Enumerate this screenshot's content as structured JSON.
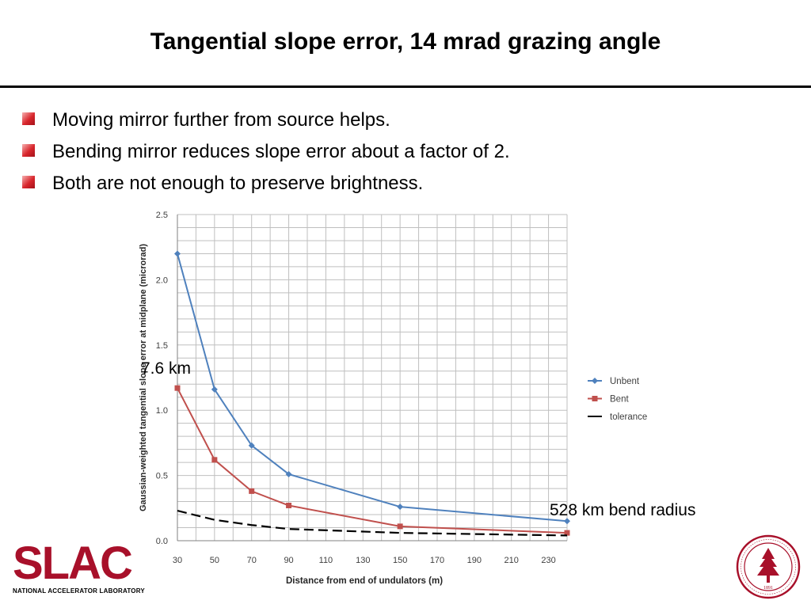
{
  "slide": {
    "title": "Tangential slope error, 14 mrad grazing angle",
    "bullets": [
      "Moving mirror further from source helps.",
      "Bending mirror reduces slope error about a factor of 2.",
      "Both are not enough to preserve brightness."
    ],
    "annotations": {
      "left": "7.6 km",
      "right": "528 km bend radius"
    },
    "footer": {
      "logo_text": "SLAC",
      "logo_subtitle": "NATIONAL ACCELERATOR LABORATORY",
      "seal_year": "1891"
    },
    "colors": {
      "accent": "#a8102a",
      "bullet": "#d8262c"
    }
  },
  "chart_data": {
    "type": "line",
    "title": "",
    "xlabel": "Distance from end of undulators (m)",
    "ylabel": "Gaussian-weighted tangential slope error at midplane (microrad)",
    "xlim": [
      30,
      240
    ],
    "ylim": [
      0,
      2.5
    ],
    "x_ticks": [
      30,
      50,
      70,
      90,
      110,
      130,
      150,
      170,
      190,
      210,
      230
    ],
    "y_ticks": [
      0.0,
      0.5,
      1.0,
      1.5,
      2.0,
      2.5
    ],
    "y_tick_labels": [
      "0.0",
      "0.5",
      "1.0",
      "1.5",
      "2.0",
      "2.5"
    ],
    "grid": true,
    "legend_position": "right",
    "series": [
      {
        "name": "Unbent",
        "color": "#4f81bd",
        "marker": "diamond",
        "dash": "solid",
        "x": [
          30,
          50,
          70,
          90,
          150,
          240
        ],
        "y": [
          2.2,
          1.16,
          0.73,
          0.51,
          0.26,
          0.15
        ]
      },
      {
        "name": "Bent",
        "color": "#c0504d",
        "marker": "square",
        "dash": "solid",
        "x": [
          30,
          50,
          70,
          90,
          150,
          240
        ],
        "y": [
          1.17,
          0.62,
          0.38,
          0.27,
          0.11,
          0.06
        ]
      },
      {
        "name": "tolerance",
        "color": "#000000",
        "marker": "none",
        "dash": "dashed",
        "x": [
          30,
          50,
          70,
          90,
          150,
          240
        ],
        "y": [
          0.23,
          0.16,
          0.12,
          0.09,
          0.06,
          0.04
        ]
      }
    ]
  }
}
